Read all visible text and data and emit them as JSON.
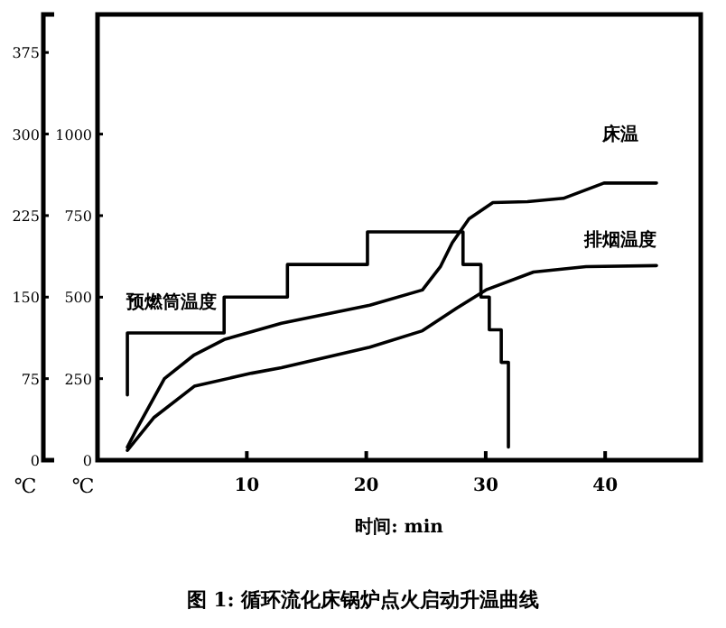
{
  "chart_data": {
    "type": "line",
    "title": "图 1: 循环流化床锅炉点火启动升温曲线",
    "xlabel": "时间: min",
    "ylabel": "℃",
    "y2label": "℃",
    "xlim": [
      -2.5,
      48
    ],
    "xticks": [
      10,
      20,
      30,
      40
    ],
    "ylim": [
      0,
      410
    ],
    "yticks": [
      0,
      75,
      150,
      225,
      300,
      375
    ],
    "y2lim": [
      0,
      1367
    ],
    "y2ticks": [
      0,
      250,
      500,
      750,
      1000
    ],
    "series": [
      {
        "name": "预燃筒温度",
        "type": "step",
        "axis": "y2",
        "color": "#000000",
        "x": [
          0,
          0,
          8.1,
          13.4,
          20.1,
          28.1,
          29.6,
          30.3,
          31.3,
          31.9
        ],
        "values": [
          200,
          390,
          500,
          600,
          700,
          600,
          500,
          400,
          300,
          40
        ]
      },
      {
        "name": "床温",
        "axis": "y2",
        "color": "#000000",
        "x": [
          0,
          0.7,
          3.1,
          5.6,
          8.1,
          12.9,
          20.3,
          24.7,
          26.2,
          27.2,
          28.6,
          30.6,
          33.5,
          36.5,
          39.9,
          44.3
        ],
        "values": [
          40,
          90,
          250,
          323,
          370,
          420,
          475,
          522,
          593,
          667,
          740,
          790,
          793,
          803,
          850,
          850
        ]
      },
      {
        "name": "排烟温度",
        "axis": "y",
        "color": "#000000",
        "x": [
          0,
          2.2,
          5.6,
          10.4,
          12.9,
          20.3,
          24.7,
          27.6,
          30.1,
          34,
          38.4,
          44.3
        ],
        "values": [
          9,
          39,
          68,
          80,
          85,
          104,
          119,
          140,
          157,
          173,
          178,
          179
        ]
      }
    ]
  }
}
